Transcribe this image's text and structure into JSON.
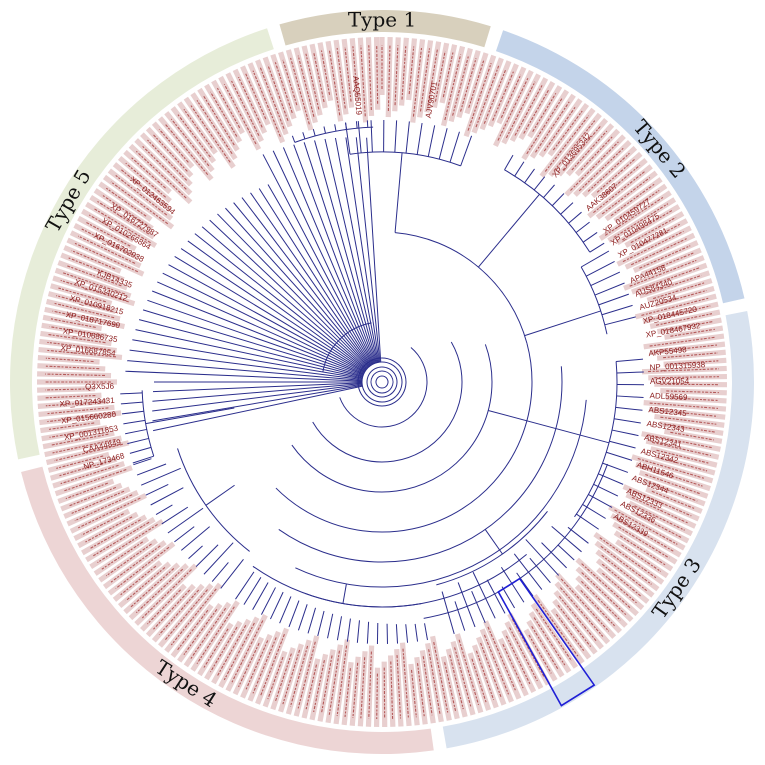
{
  "segments": [
    {
      "id": "type1",
      "label": "Type 1",
      "color": "#d8d0bd",
      "start": -16,
      "end": 17,
      "label_angle": 0
    },
    {
      "id": "type2",
      "label": "Type 2",
      "color": "#c4d4ea",
      "start": 19,
      "end": 77,
      "label_angle": 50
    },
    {
      "id": "type3",
      "label": "Type 3",
      "color": "#d8e2ef",
      "start": 79,
      "end": 170,
      "label_angle": 125
    },
    {
      "id": "type4",
      "label": "Type 4",
      "color": "#edd5d5",
      "start": 172,
      "end": 256,
      "label_angle": 213
    },
    {
      "id": "type5",
      "label": "Type 5",
      "color": "#e7edd9",
      "start": 258,
      "end": 342,
      "label_angle": 300
    }
  ],
  "colors": {
    "branch": "#2b2e8c",
    "leaf_label_bg": "#e8cfcf",
    "leaf_label_text": "#8b1a1a",
    "highlight_box": "#1f1fd6"
  },
  "leaves": [
    {
      "label": "AKP55498",
      "angle": 84
    },
    {
      "label": "NP_001315938",
      "angle": 87
    },
    {
      "label": "AGV21054",
      "angle": 90
    },
    {
      "label": "ADL59569",
      "angle": 93
    },
    {
      "label": "ABS12345",
      "angle": 96
    },
    {
      "label": "ABS12343",
      "angle": 99
    },
    {
      "label": "ABS12341",
      "angle": 102
    },
    {
      "label": "ABS12342",
      "angle": 105
    },
    {
      "label": "ABH11546",
      "angle": 108
    },
    {
      "label": "ABS12344",
      "angle": 111
    },
    {
      "label": "ABS12333",
      "angle": 114
    },
    {
      "label": "ABS12336",
      "angle": 117
    },
    {
      "label": "ABS12339",
      "angle": 120
    },
    {
      "label": "XP_018467932",
      "angle": 80
    },
    {
      "label": "XP_018445720",
      "angle": 77
    },
    {
      "label": "AUZ20534",
      "angle": 74
    },
    {
      "label": "AUS84340",
      "angle": 71
    },
    {
      "label": "APA44158",
      "angle": 68
    },
    {
      "label": "XP_010477281",
      "angle": 62
    },
    {
      "label": "XP_010498475",
      "angle": 59
    },
    {
      "label": "XP_010459727",
      "angle": 56
    },
    {
      "label": "AAK38607",
      "angle": 50
    },
    {
      "label": "XP_013695342",
      "angle": 40
    },
    {
      "label": "AJV90701",
      "angle": 10
    },
    {
      "label": "AAQ55019",
      "angle": -5
    },
    {
      "label": "Q3X5J6",
      "angle": 269
    },
    {
      "label": "XP_017243431",
      "angle": 266
    },
    {
      "label": "XP_015660280",
      "angle": 263
    },
    {
      "label": "XP_001311853",
      "angle": 260
    },
    {
      "label": "CAA44849",
      "angle": 257
    },
    {
      "label": "NP_173468",
      "angle": 254
    },
    {
      "label": "XP_016687854",
      "angle": 276
    },
    {
      "label": "XP_010686735",
      "angle": 279
    },
    {
      "label": "XP_018717690",
      "angle": 282
    },
    {
      "label": "XP_010918215",
      "angle": 285
    },
    {
      "label": "XP_015340212",
      "angle": 288
    },
    {
      "label": "KJB14335",
      "angle": 291
    },
    {
      "label": "XP_016702938",
      "angle": 297
    },
    {
      "label": "XP_010266864",
      "angle": 300
    },
    {
      "label": "XP_016727987",
      "angle": 303
    },
    {
      "label": "XP_012463594",
      "angle": 309
    }
  ],
  "highlight_box": {
    "present": true
  }
}
